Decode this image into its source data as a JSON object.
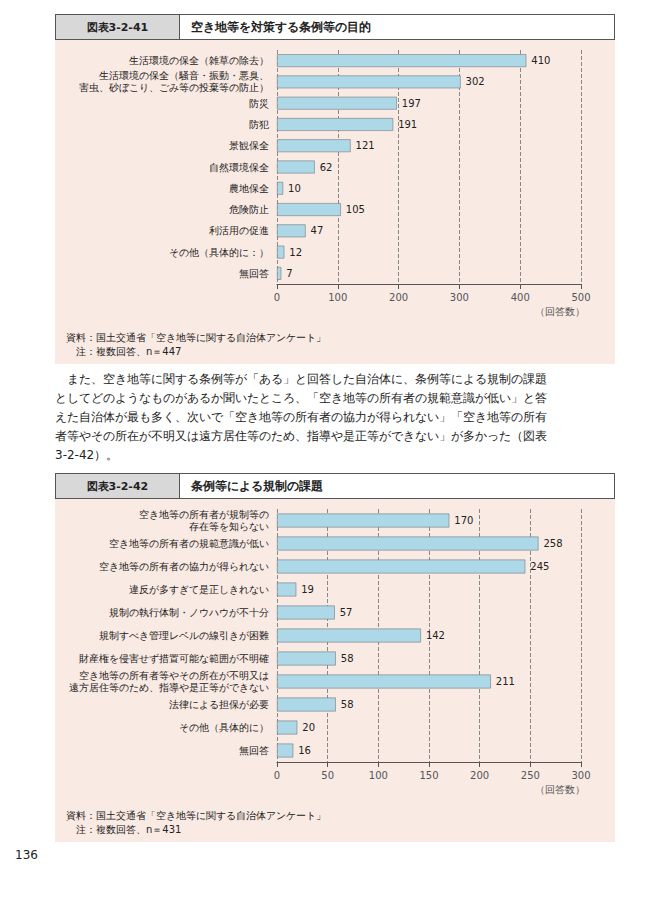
{
  "chart_data": [
    {
      "type": "bar",
      "orientation": "horizontal",
      "figure_label": "図表3-2-41",
      "title": "空き地等を対策する条例等の目的",
      "categories": [
        "生活環境の保全（雑草の除去）",
        "生活環境の保全（騒音・振動・悪臭、\n害虫、砂ぼこり、ごみ等の投棄等の防止）",
        "防災",
        "防犯",
        "景観保全",
        "自然環境保全",
        "農地保全",
        "危険防止",
        "利活用の促進",
        "その他（具体的に：）",
        "無回答"
      ],
      "values": [
        410,
        302,
        197,
        191,
        121,
        62,
        10,
        105,
        47,
        12,
        7
      ],
      "color": "#add8e8",
      "xlim": [
        0,
        500
      ],
      "xticks": [
        0,
        100,
        200,
        300,
        400,
        500
      ],
      "xlabel": "（回答数）",
      "grid": true,
      "data_labels": true,
      "source": [
        "資料：国土交通省「空き地等に関する自治体アンケート」",
        "　注：複数回答、n＝447"
      ]
    },
    {
      "type": "bar",
      "orientation": "horizontal",
      "figure_label": "図表3-2-42",
      "title": "条例等による規制の課題",
      "categories": [
        "空き地等の所有者が規制等の\n存在等を知らない",
        "空き地等の所有者の規範意識が低い",
        "空き地等の所有者の協力が得られない",
        "違反が多すぎて是正しきれない",
        "規制の執行体制・ノウハウが不十分",
        "規制すべき管理レベルの線引きが困難",
        "財産権を侵害せず措置可能な範囲が不明確",
        "空き地等の所有者等やその所在が不明又は\n遠方居住等のため、指導や是正等ができない",
        "法律による担保が必要",
        "その他（具体的に）",
        "無回答"
      ],
      "values": [
        170,
        258,
        245,
        19,
        57,
        142,
        58,
        211,
        58,
        20,
        16
      ],
      "color": "#add8e8",
      "xlim": [
        0,
        300
      ],
      "xticks": [
        0,
        50,
        100,
        150,
        200,
        250,
        300
      ],
      "xlabel": "（回答数）",
      "grid": true,
      "data_labels": true,
      "source": [
        "資料：国土交通省「空き地等に関する自治体アンケート」",
        "　注：複数回答、n＝431"
      ]
    }
  ],
  "paragraph": [
    "　また、空き地等に関する条例等が「ある」と回答した自治体に、条例等による規制の課題",
    "としてどのようなものがあるか聞いたところ、「空き地等の所有者の規範意識が低い」と答",
    "えた自治体が最も多く、次いで「空き地等の所有者の協力が得られない」「空き地等の所有",
    "者等やその所在が不明又は遠方居住等のため、指導や是正等ができない」が多かった（図表",
    "3-2-42）。"
  ],
  "page_number": "136"
}
